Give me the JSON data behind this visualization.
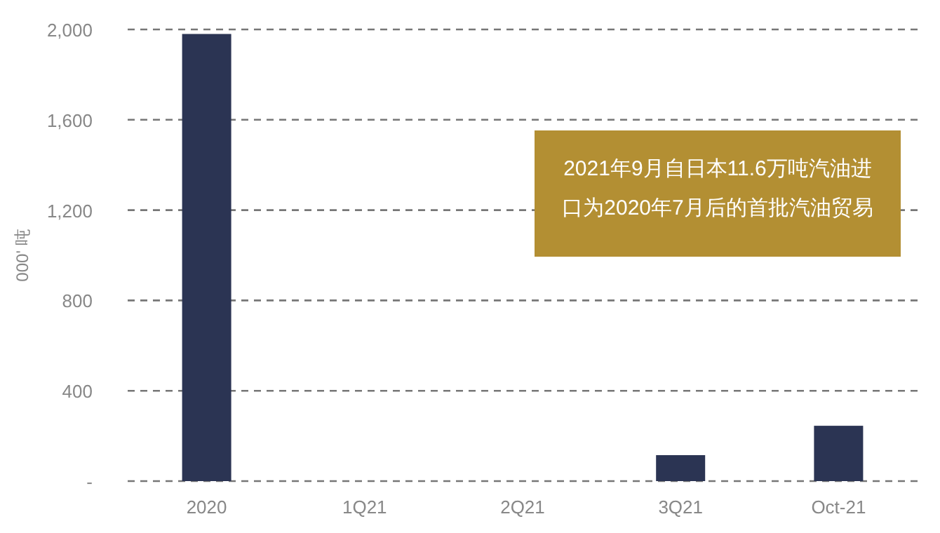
{
  "chart_data": {
    "type": "bar",
    "categories": [
      "2020",
      "1Q21",
      "2Q21",
      "3Q21",
      "Oct-21"
    ],
    "values": [
      1980,
      0,
      0,
      115,
      245
    ],
    "color": "#2b3453",
    "ylabel": "000' 吨",
    "ylim": [
      0,
      2000
    ],
    "yticks": [
      {
        "value": 0,
        "label": "-"
      },
      {
        "value": 400,
        "label": "400"
      },
      {
        "value": 800,
        "label": "800"
      },
      {
        "value": 1200,
        "label": "1,200"
      },
      {
        "value": 1600,
        "label": "1,600"
      },
      {
        "value": 2000,
        "label": "2,000"
      }
    ],
    "grid": "y",
    "annotations": [
      "2021年9月自日本11.6万吨汽油进口为2020年7月后的首批汽油贸易"
    ]
  }
}
